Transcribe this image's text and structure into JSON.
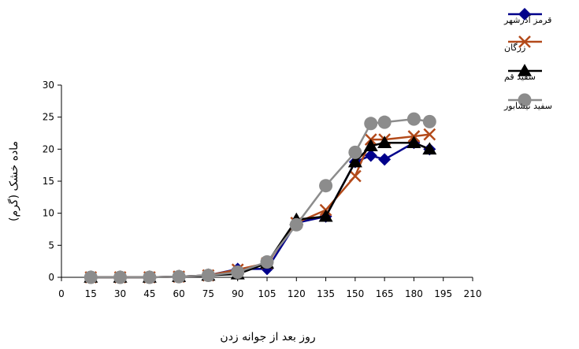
{
  "chart_data": {
    "type": "line",
    "title": "",
    "xlabel": "روز بعد از جوانه زدن",
    "ylabel": "ماده خشک (گرم)",
    "xlim": [
      0,
      210
    ],
    "ylim": [
      0,
      30
    ],
    "xticks": [
      0,
      15,
      30,
      45,
      60,
      75,
      90,
      105,
      120,
      135,
      150,
      165,
      180,
      195,
      210
    ],
    "yticks": [
      0,
      5,
      10,
      15,
      20,
      25,
      30
    ],
    "grid": false,
    "legend_position": "top-right",
    "series": [
      {
        "name": "قرمز آذرشهر",
        "marker": "diamond",
        "color": "#00008b",
        "x": [
          15,
          30,
          45,
          60,
          75,
          90,
          105,
          120,
          135,
          150,
          158,
          165,
          180,
          188
        ],
        "y": [
          0,
          0,
          0,
          0.1,
          0.3,
          1.3,
          1.3,
          8.5,
          9.5,
          18,
          19,
          18.4,
          21,
          20
        ]
      },
      {
        "name": "زرگان",
        "marker": "x",
        "color": "#b34a1a",
        "x": [
          15,
          30,
          45,
          60,
          75,
          90,
          105,
          120,
          135,
          150,
          158,
          165,
          180,
          188
        ],
        "y": [
          0,
          0,
          0,
          0.1,
          0.3,
          1.2,
          2.2,
          8.5,
          10.5,
          15.8,
          21.5,
          21.5,
          22,
          22.3
        ]
      },
      {
        "name": "سفید قم",
        "marker": "triangle",
        "color": "#000000",
        "x": [
          15,
          30,
          45,
          60,
          75,
          90,
          105,
          120,
          135,
          150,
          158,
          165,
          180,
          188
        ],
        "y": [
          0,
          0,
          0,
          0.1,
          0.3,
          0.5,
          2.2,
          9,
          9.5,
          18,
          20.5,
          21,
          21,
          20
        ]
      },
      {
        "name": "سفید نیشابور",
        "marker": "circle",
        "color": "#8c8c8c",
        "x": [
          15,
          30,
          45,
          60,
          75,
          90,
          105,
          120,
          135,
          150,
          158,
          165,
          180,
          188
        ],
        "y": [
          0,
          0,
          0,
          0.1,
          0.3,
          0.8,
          2.4,
          8.2,
          14.3,
          19.5,
          24,
          24.2,
          24.7,
          24.3
        ]
      }
    ]
  }
}
